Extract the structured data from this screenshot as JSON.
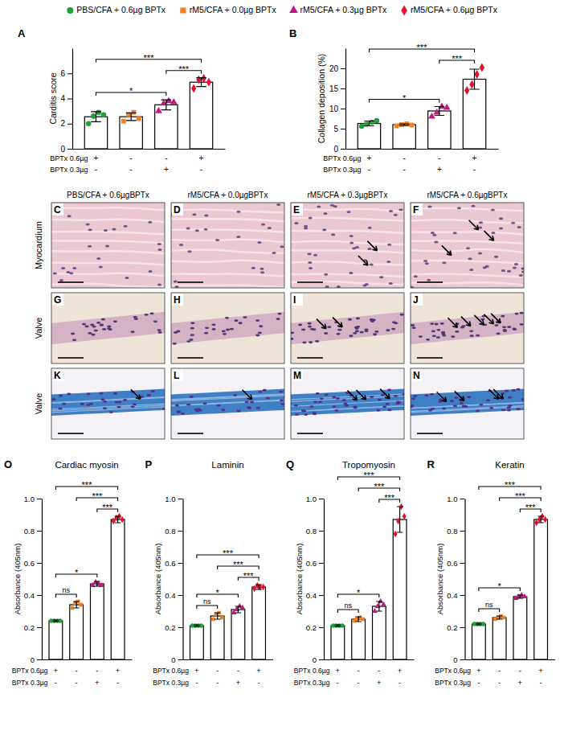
{
  "legend_entries": [
    {
      "name": "PBS/CFA + 0.6µg BPTx",
      "color": "#1f9e3a",
      "marker": "circle"
    },
    {
      "name": "rM5/CFA + 0.0µg BPTx",
      "color": "#f28021",
      "marker": "square"
    },
    {
      "name": "rM5/CFA + 0.3µg BPTx",
      "color": "#c2187f",
      "marker": "triangle"
    },
    {
      "name": "rM5/CFA + 0.6µg BPTx",
      "color": "#e8112d",
      "marker": "diamond"
    }
  ],
  "chart_data": [
    {
      "type": "bar",
      "panel": "A",
      "y_label": "Carditis score",
      "categories": [
        null,
        null,
        null,
        null
      ],
      "values": [
        2.55,
        2.55,
        3.5,
        5.3
      ],
      "errors": [
        0.4,
        0.3,
        0.4,
        0.35
      ],
      "points": [
        [
          2.0,
          2.6,
          2.9,
          2.7
        ],
        [
          2.2,
          2.7,
          2.9,
          2.4
        ],
        [
          3.0,
          3.6,
          3.8,
          3.7
        ],
        [
          4.8,
          5.5,
          5.6,
          5.3
        ]
      ],
      "colors": [
        "#1f9e3a",
        "#f28021",
        "#c2187f",
        "#e8112d"
      ],
      "ylim": [
        0,
        8
      ],
      "yticks": [
        0,
        2,
        4,
        6
      ],
      "annotations": [
        {
          "groups": [
            0,
            2
          ],
          "text": "*"
        },
        {
          "groups": [
            2,
            3
          ],
          "text": "***"
        },
        {
          "groups": [
            0,
            3
          ],
          "text": "***"
        }
      ],
      "treatments": [
        {
          "label": "BPTx 0.6µg",
          "marks": [
            "+",
            "-",
            "-",
            "+"
          ]
        },
        {
          "label": "BPTx 0.3µg",
          "marks": [
            "-",
            "-",
            "+",
            "-"
          ]
        }
      ]
    },
    {
      "type": "bar",
      "panel": "B",
      "y_label": "Collagen deposition (%)",
      "categories": [
        null,
        null,
        null,
        null
      ],
      "values": [
        6.3,
        6.0,
        9.4,
        17.3
      ],
      "errors": [
        0.6,
        0.2,
        1.1,
        2.5
      ],
      "points": [
        [
          5.6,
          6.1,
          6.6,
          7.0
        ],
        [
          5.7,
          6.0,
          6.2,
          5.9
        ],
        [
          8.0,
          9.0,
          10.5,
          10.2
        ],
        [
          14.5,
          16.0,
          18.5,
          20.2
        ]
      ],
      "colors": [
        "#1f9e3a",
        "#f28021",
        "#c2187f",
        "#e8112d"
      ],
      "ylim": [
        0,
        25
      ],
      "yticks": [
        0,
        5,
        10,
        15,
        20
      ],
      "annotations": [
        {
          "groups": [
            0,
            2
          ],
          "text": "*"
        },
        {
          "groups": [
            2,
            3
          ],
          "text": "***"
        },
        {
          "groups": [
            0,
            3
          ],
          "text": "***"
        }
      ],
      "treatments": [
        {
          "label": "BPTx 0.6µg",
          "marks": [
            "+",
            "-",
            "-",
            "+"
          ]
        },
        {
          "label": "BPTx 0.3µg",
          "marks": [
            "-",
            "-",
            "+",
            "-"
          ]
        }
      ]
    },
    {
      "type": "bar",
      "panel": "O",
      "title": "Cardiac myosin",
      "y_label": "Absorbance (405nm)",
      "categories": [
        null,
        null,
        null,
        null
      ],
      "values": [
        0.24,
        0.34,
        0.47,
        0.87
      ],
      "errors": [
        0.005,
        0.02,
        0.015,
        0.02
      ],
      "points": [
        [
          0.24,
          0.24,
          0.24,
          0.24
        ],
        [
          0.32,
          0.35,
          0.36,
          0.34
        ],
        [
          0.46,
          0.48,
          0.47,
          0.46
        ],
        [
          0.86,
          0.88,
          0.89,
          0.87
        ]
      ],
      "colors": [
        "#1f9e3a",
        "#f28021",
        "#c2187f",
        "#e8112d"
      ],
      "ylim": [
        0,
        1
      ],
      "yticks": [
        0,
        0.2,
        0.4,
        0.6,
        0.8,
        {
          "value": 1,
          "label": "1.0"
        }
      ],
      "annotations": [
        {
          "groups": [
            0,
            1
          ],
          "text": "ns"
        },
        {
          "groups": [
            0,
            2
          ],
          "text": "*"
        },
        {
          "groups": [
            2,
            3
          ],
          "text": "***"
        },
        {
          "groups": [
            1,
            3
          ],
          "text": "***"
        },
        {
          "groups": [
            0,
            3
          ],
          "text": "***"
        }
      ],
      "treatments": [
        {
          "label": "BPTx 0.6µg",
          "marks": [
            "+",
            "-",
            "-",
            "+"
          ]
        },
        {
          "label": "BPTx 0.3µg",
          "marks": [
            "-",
            "-",
            "+",
            "-"
          ]
        }
      ]
    },
    {
      "type": "bar",
      "panel": "P",
      "title": "Laminin",
      "y_label": "Absorbance (405nm)",
      "categories": [
        null,
        null,
        null,
        null
      ],
      "values": [
        0.21,
        0.27,
        0.31,
        0.45
      ],
      "errors": [
        0.005,
        0.02,
        0.02,
        0.015
      ],
      "points": [
        [
          0.21,
          0.21,
          0.21,
          0.21
        ],
        [
          0.25,
          0.28,
          0.29,
          0.26
        ],
        [
          0.29,
          0.31,
          0.33,
          0.32
        ],
        [
          0.44,
          0.46,
          0.45,
          0.45
        ]
      ],
      "colors": [
        "#1f9e3a",
        "#f28021",
        "#c2187f",
        "#e8112d"
      ],
      "ylim": [
        0,
        1
      ],
      "yticks": [
        0,
        0.2,
        0.4,
        0.6,
        0.8,
        {
          "value": 1,
          "label": "1.0"
        }
      ],
      "annotations": [
        {
          "groups": [
            0,
            1
          ],
          "text": "ns"
        },
        {
          "groups": [
            0,
            2
          ],
          "text": "*"
        },
        {
          "groups": [
            2,
            3
          ],
          "text": "***"
        },
        {
          "groups": [
            1,
            3
          ],
          "text": "***"
        },
        {
          "groups": [
            0,
            3
          ],
          "text": "***"
        }
      ],
      "treatments": [
        {
          "label": "BPTx 0.6µg",
          "marks": [
            "+",
            "-",
            "-",
            "+"
          ]
        },
        {
          "label": "BPTx 0.3µg",
          "marks": [
            "-",
            "-",
            "+",
            "-"
          ]
        }
      ]
    },
    {
      "type": "bar",
      "panel": "Q",
      "title": "Tropomyosin",
      "y_label": "Absorbance (405nm)",
      "categories": [
        null,
        null,
        null,
        null
      ],
      "values": [
        0.21,
        0.25,
        0.33,
        0.87
      ],
      "errors": [
        0.005,
        0.015,
        0.03,
        0.08
      ],
      "points": [
        [
          0.21,
          0.21,
          0.21,
          0.21
        ],
        [
          0.24,
          0.25,
          0.26,
          0.25
        ],
        [
          0.3,
          0.33,
          0.36,
          0.34
        ],
        [
          0.78,
          0.86,
          0.95,
          0.89
        ]
      ],
      "colors": [
        "#1f9e3a",
        "#f28021",
        "#c2187f",
        "#e8112d"
      ],
      "ylim": [
        0,
        1
      ],
      "yticks": [
        0,
        0.2,
        0.4,
        0.6,
        0.8,
        {
          "value": 1,
          "label": "1.0"
        }
      ],
      "annotations": [
        {
          "groups": [
            0,
            1
          ],
          "text": "ns"
        },
        {
          "groups": [
            0,
            2
          ],
          "text": "*"
        },
        {
          "groups": [
            2,
            3
          ],
          "text": "***"
        },
        {
          "groups": [
            1,
            3
          ],
          "text": "***"
        },
        {
          "groups": [
            0,
            3
          ],
          "text": "***"
        }
      ],
      "treatments": [
        {
          "label": "BPTx 0.6µg",
          "marks": [
            "+",
            "-",
            "-",
            "+"
          ]
        },
        {
          "label": "BPTx 0.3µg",
          "marks": [
            "-",
            "-",
            "+",
            "-"
          ]
        }
      ]
    },
    {
      "type": "bar",
      "panel": "R",
      "title": "Keratin",
      "y_label": "Absorbance (405nm)",
      "categories": [
        null,
        null,
        null,
        null
      ],
      "values": [
        0.22,
        0.26,
        0.39,
        0.87
      ],
      "errors": [
        0.005,
        0.01,
        0.01,
        0.02
      ],
      "points": [
        [
          0.22,
          0.22,
          0.22,
          0.22
        ],
        [
          0.25,
          0.26,
          0.27,
          0.26
        ],
        [
          0.38,
          0.39,
          0.4,
          0.39
        ],
        [
          0.85,
          0.87,
          0.89,
          0.87
        ]
      ],
      "colors": [
        "#1f9e3a",
        "#f28021",
        "#c2187f",
        "#e8112d"
      ],
      "ylim": [
        0,
        1
      ],
      "yticks": [
        0,
        0.2,
        0.4,
        0.6,
        0.8,
        {
          "value": 1,
          "label": "1.0"
        }
      ],
      "annotations": [
        {
          "groups": [
            0,
            1
          ],
          "text": "ns"
        },
        {
          "groups": [
            0,
            2
          ],
          "text": "*"
        },
        {
          "groups": [
            2,
            3
          ],
          "text": "***"
        },
        {
          "groups": [
            1,
            3
          ],
          "text": "***"
        },
        {
          "groups": [
            0,
            3
          ],
          "text": "***"
        }
      ],
      "treatments": [
        {
          "label": "BPTx 0.6µg",
          "marks": [
            "+",
            "-",
            "-",
            "+"
          ]
        },
        {
          "label": "BPTx 0.3µg",
          "marks": [
            "-",
            "-",
            "+",
            "-"
          ]
        }
      ]
    }
  ],
  "image_grid": {
    "column_titles": [
      "PBS/CFA + 0.6µgBPTx",
      "rM5/CFA + 0.0µgBPTx",
      "rM5/CFA + 0.3µgBPTx",
      "rM5/CFA + 0.6µgBPTx"
    ],
    "row_labels": [
      "Myocardium",
      "Valve",
      "Valve"
    ],
    "panels": [
      [
        "C",
        "D",
        "E",
        "F"
      ],
      [
        "G",
        "H",
        "I",
        "J"
      ],
      [
        "K",
        "L",
        "M",
        "N"
      ]
    ]
  }
}
